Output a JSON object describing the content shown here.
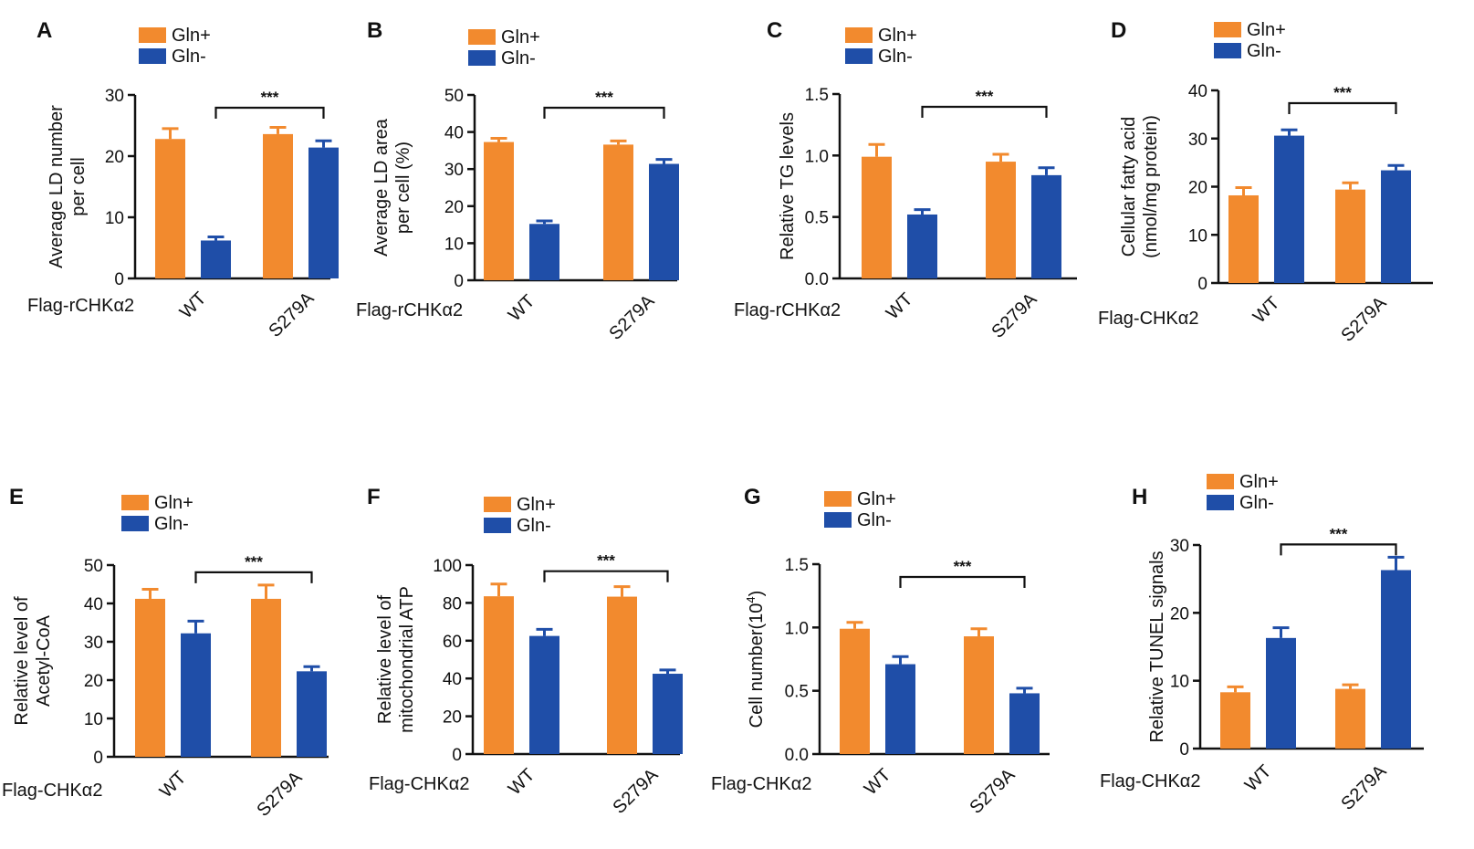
{
  "colors": {
    "gln_plus": "#f28a2e",
    "gln_minus": "#1f4ea8",
    "axis": "#111111"
  },
  "chart_data": [
    {
      "type": "bar",
      "panel": "A",
      "title": "",
      "series": [
        {
          "name": "Gln+",
          "values": [
            22.8,
            23.6
          ],
          "errors": [
            1.7,
            1.1
          ]
        },
        {
          "name": "Gln-",
          "values": [
            6.2,
            21.4
          ],
          "errors": [
            0.6,
            1.1
          ]
        }
      ],
      "categories": [
        "WT",
        "S279A"
      ],
      "group_label": "Flag-rCHKα2",
      "ylabel": [
        "Average LD number",
        "per cell"
      ],
      "ylim": [
        0,
        30
      ],
      "yticks": [
        0,
        10,
        20,
        30
      ],
      "ytick_labels": [
        "0",
        "10",
        "20",
        "30"
      ],
      "significance": "***"
    },
    {
      "type": "bar",
      "panel": "B",
      "title": "",
      "series": [
        {
          "name": "Gln+",
          "values": [
            37.3,
            36.6
          ],
          "errors": [
            1.0,
            1.0
          ]
        },
        {
          "name": "Gln-",
          "values": [
            15.2,
            31.4
          ],
          "errors": [
            0.8,
            1.2
          ]
        }
      ],
      "categories": [
        "WT",
        "S279A"
      ],
      "group_label": "Flag-rCHKα2",
      "ylabel": [
        "Average LD area",
        "per cell (%)"
      ],
      "ylim": [
        0,
        50
      ],
      "yticks": [
        0,
        10,
        20,
        30,
        40,
        50
      ],
      "ytick_labels": [
        "0",
        "10",
        "20",
        "30",
        "40",
        "50"
      ],
      "significance": "***"
    },
    {
      "type": "bar",
      "panel": "C",
      "title": "",
      "series": [
        {
          "name": "Gln+",
          "values": [
            0.99,
            0.95
          ],
          "errors": [
            0.1,
            0.06
          ]
        },
        {
          "name": "Gln-",
          "values": [
            0.52,
            0.84
          ],
          "errors": [
            0.04,
            0.06
          ]
        }
      ],
      "categories": [
        "WT",
        "S279A"
      ],
      "group_label": "Flag-rCHKα2",
      "ylabel": [
        "Relative TG levels"
      ],
      "ylim": [
        0,
        1.5
      ],
      "yticks": [
        0,
        0.5,
        1.0,
        1.5
      ],
      "ytick_labels": [
        "0.0",
        "0.5",
        "1.0",
        "1.5"
      ],
      "significance": "***"
    },
    {
      "type": "bar",
      "panel": "D",
      "title": "",
      "series": [
        {
          "name": "Gln+",
          "values": [
            18.2,
            19.4
          ],
          "errors": [
            1.6,
            1.4
          ]
        },
        {
          "name": "Gln-",
          "values": [
            30.6,
            23.4
          ],
          "errors": [
            1.2,
            1.0
          ]
        }
      ],
      "categories": [
        "WT",
        "S279A"
      ],
      "group_label": "Flag-CHKα2",
      "ylabel": [
        "Cellular fatty acid",
        "(nmol/mg protein)"
      ],
      "ylim": [
        0,
        40
      ],
      "yticks": [
        0,
        10,
        20,
        30,
        40
      ],
      "ytick_labels": [
        "0",
        "10",
        "20",
        "30",
        "40"
      ],
      "significance": "***"
    },
    {
      "type": "bar",
      "panel": "E",
      "title": "",
      "series": [
        {
          "name": "Gln+",
          "values": [
            41.2,
            41.2
          ],
          "errors": [
            2.5,
            3.6
          ]
        },
        {
          "name": "Gln-",
          "values": [
            32.2,
            22.3
          ],
          "errors": [
            3.2,
            1.2
          ]
        }
      ],
      "categories": [
        "WT",
        "S279A"
      ],
      "group_label": "Flag-CHKα2",
      "ylabel": [
        "Relative level of",
        "Acetyl-CoA"
      ],
      "ylim": [
        0,
        50
      ],
      "yticks": [
        0,
        10,
        20,
        30,
        40,
        50
      ],
      "ytick_labels": [
        "0",
        "10",
        "20",
        "30",
        "40",
        "50"
      ],
      "significance": "***"
    },
    {
      "type": "bar",
      "panel": "F",
      "title": "",
      "series": [
        {
          "name": "Gln+",
          "values": [
            83.5,
            83.3
          ],
          "errors": [
            6.5,
            5.3
          ]
        },
        {
          "name": "Gln-",
          "values": [
            62.5,
            42.5
          ],
          "errors": [
            3.5,
            2.0
          ]
        }
      ],
      "categories": [
        "WT",
        "S279A"
      ],
      "group_label": "Flag-CHKα2",
      "ylabel": [
        "Relative level of",
        "mitochondrial ATP"
      ],
      "ylim": [
        0,
        100
      ],
      "yticks": [
        0,
        20,
        40,
        60,
        80,
        100
      ],
      "ytick_labels": [
        "0",
        "20",
        "40",
        "60",
        "80",
        "100"
      ],
      "significance": "***"
    },
    {
      "type": "bar",
      "panel": "G",
      "title": "",
      "series": [
        {
          "name": "Gln+",
          "values": [
            0.99,
            0.93
          ],
          "errors": [
            0.05,
            0.06
          ]
        },
        {
          "name": "Gln-",
          "values": [
            0.71,
            0.48
          ],
          "errors": [
            0.06,
            0.04
          ]
        }
      ],
      "categories": [
        "WT",
        "S279A"
      ],
      "group_label": "Flag-CHKα2",
      "ylabel": [
        "Cell number(10",
        "4",
        ")"
      ],
      "ylim": [
        0,
        1.5
      ],
      "yticks": [
        0,
        0.5,
        1.0,
        1.5
      ],
      "ytick_labels": [
        "0.0",
        "0.5",
        "1.0",
        "1.5"
      ],
      "significance": "***"
    },
    {
      "type": "bar",
      "panel": "H",
      "title": "",
      "series": [
        {
          "name": "Gln+",
          "values": [
            8.3,
            8.8
          ],
          "errors": [
            0.8,
            0.6
          ]
        },
        {
          "name": "Gln-",
          "values": [
            16.3,
            26.3
          ],
          "errors": [
            1.5,
            1.9
          ]
        }
      ],
      "categories": [
        "WT",
        "S279A"
      ],
      "group_label": "Flag-CHKα2",
      "ylabel": [
        "Relative TUNEL signals"
      ],
      "ylim": [
        0,
        30
      ],
      "yticks": [
        0,
        10,
        20,
        30
      ],
      "ytick_labels": [
        "0",
        "10",
        "20",
        "30"
      ],
      "significance": "***"
    }
  ]
}
